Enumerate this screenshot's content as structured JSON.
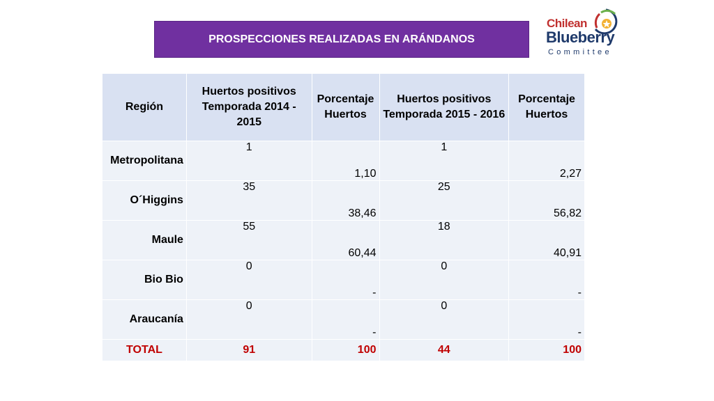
{
  "title": "PROSPECCIONES REALIZADAS EN ARÁNDANOS",
  "logo": {
    "line1": "Chilean",
    "line2": "Blueberry",
    "line3": "Committee",
    "colors": {
      "red": "#c0302f",
      "navy": "#1f3a6b",
      "green": "#6ab04c",
      "gold": "#f2b134"
    }
  },
  "colors": {
    "banner": "#7030a0",
    "header_bg": "#d9e1f2",
    "cell_bg": "#eef2f8",
    "total_text": "#c00000"
  },
  "table": {
    "headers": [
      "Región",
      "Huertos positivos Temporada 2014 - 2015",
      "Porcentaje Huertos",
      "Huertos positivos Temporada 2015 - 2016",
      "Porcentaje Huertos"
    ],
    "rows": [
      {
        "region": "Metropolitana",
        "c1": "1",
        "p1": "1,10",
        "c2": "1",
        "p2": "2,27"
      },
      {
        "region": "O´Higgins",
        "c1": "35",
        "p1": "38,46",
        "c2": "25",
        "p2": "56,82"
      },
      {
        "region": "Maule",
        "c1": "55",
        "p1": "60,44",
        "c2": "18",
        "p2": "40,91"
      },
      {
        "region": "Bio Bio",
        "c1": "0",
        "p1": "-",
        "c2": "0",
        "p2": "-"
      },
      {
        "region": "Araucanía",
        "c1": "0",
        "p1": "-",
        "c2": "0",
        "p2": "-"
      }
    ],
    "total": {
      "label": "TOTAL",
      "c1": "91",
      "p1": "100",
      "c2": "44",
      "p2": "100"
    }
  }
}
